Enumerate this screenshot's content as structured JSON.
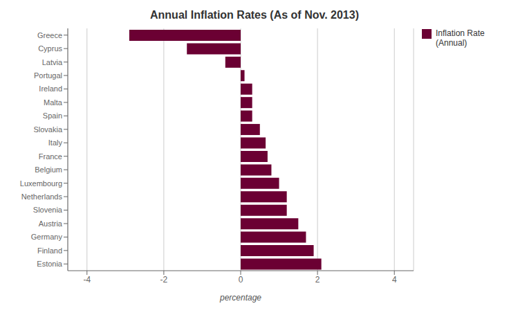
{
  "chart_data": {
    "type": "bar",
    "orientation": "horizontal",
    "title": "Annual Inflation Rates (As of Nov. 2013)",
    "xlabel": "percentage",
    "categories": [
      "Greece",
      "Cyprus",
      "Latvia",
      "Portugal",
      "Ireland",
      "Malta",
      "Spain",
      "Slovakia",
      "Italy",
      "France",
      "Belgium",
      "Luxembourg",
      "Netherlands",
      "Slovenia",
      "Austria",
      "Germany",
      "Finland",
      "Estonia"
    ],
    "series": [
      {
        "name": "Inflation Rate\n(Annual)",
        "color": "#6B0033",
        "values": [
          -2.9,
          -1.4,
          -0.4,
          0.1,
          0.3,
          0.3,
          0.3,
          0.5,
          0.65,
          0.7,
          0.8,
          1.0,
          1.2,
          1.2,
          1.5,
          1.7,
          1.9,
          2.1
        ]
      }
    ],
    "xlim": [
      -4.5,
      4.5
    ],
    "xticks": [
      -4,
      -2,
      0,
      2,
      4
    ],
    "grid": true,
    "legend": "right"
  }
}
